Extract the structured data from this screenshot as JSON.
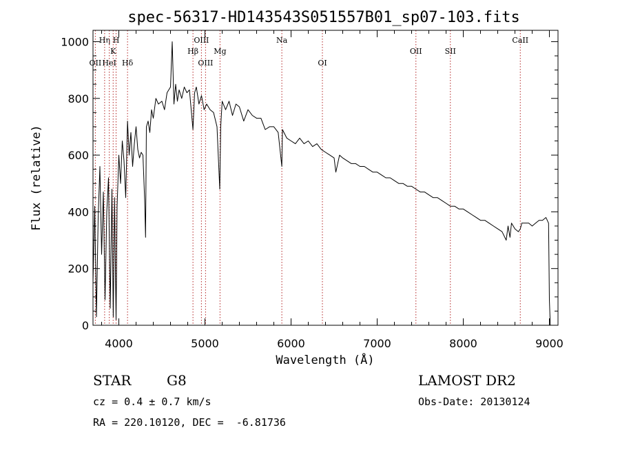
{
  "chart_data": {
    "type": "line",
    "title": "spec-56317-HD143543S051557B01_sp07-103.fits",
    "xlabel": "Wavelength (Å)",
    "ylabel": "Flux (relative)",
    "xlim": [
      3700,
      9100
    ],
    "ylim": [
      0,
      1040
    ],
    "xticks": [
      4000,
      5000,
      6000,
      7000,
      8000,
      9000
    ],
    "yticks": [
      0,
      200,
      400,
      600,
      800,
      1000
    ],
    "grid": false,
    "line_color": "#000000",
    "marker_color": "#b22222",
    "series": [
      {
        "x": [
          3700,
          3720,
          3740,
          3760,
          3780,
          3800,
          3820,
          3840,
          3860,
          3880,
          3900,
          3920,
          3935,
          3950,
          3968,
          3980,
          4000,
          4020,
          4040,
          4060,
          4080,
          4101,
          4120,
          4140,
          4160,
          4180,
          4200,
          4220,
          4240,
          4260,
          4280,
          4300,
          4310,
          4320,
          4340,
          4360,
          4380,
          4400,
          4430,
          4460,
          4500,
          4530,
          4560,
          4600,
          4620,
          4640,
          4660,
          4680,
          4700,
          4730,
          4760,
          4790,
          4820,
          4861,
          4880,
          4900,
          4930,
          4960,
          4990,
          5020,
          5060,
          5100,
          5140,
          5172,
          5183,
          5200,
          5240,
          5280,
          5320,
          5360,
          5400,
          5450,
          5500,
          5550,
          5600,
          5650,
          5700,
          5750,
          5800,
          5850,
          5893,
          5900,
          5950,
          6000,
          6050,
          6100,
          6150,
          6200,
          6250,
          6300,
          6350,
          6400,
          6450,
          6500,
          6520,
          6563,
          6600,
          6650,
          6700,
          6750,
          6800,
          6850,
          6900,
          6950,
          7000,
          7050,
          7100,
          7150,
          7200,
          7250,
          7300,
          7350,
          7400,
          7450,
          7500,
          7550,
          7600,
          7650,
          7700,
          7750,
          7800,
          7850,
          7900,
          7950,
          8000,
          8050,
          8100,
          8150,
          8200,
          8250,
          8300,
          8350,
          8400,
          8450,
          8498,
          8520,
          8542,
          8560,
          8600,
          8640,
          8662,
          8680,
          8720,
          8760,
          8800,
          8840,
          8880,
          8920,
          8960,
          8990,
          9000,
          9010
        ],
        "y": [
          150,
          420,
          30,
          380,
          560,
          250,
          470,
          90,
          400,
          520,
          60,
          480,
          30,
          450,
          20,
          420,
          600,
          500,
          650,
          580,
          450,
          720,
          600,
          680,
          560,
          640,
          700,
          620,
          590,
          610,
          600,
          440,
          310,
          700,
          720,
          680,
          760,
          730,
          800,
          780,
          790,
          760,
          820,
          840,
          1000,
          780,
          850,
          790,
          830,
          800,
          840,
          820,
          830,
          690,
          820,
          840,
          780,
          810,
          760,
          780,
          760,
          750,
          700,
          480,
          700,
          790,
          760,
          790,
          740,
          780,
          770,
          720,
          760,
          740,
          730,
          730,
          690,
          700,
          700,
          680,
          560,
          690,
          660,
          650,
          640,
          660,
          640,
          650,
          630,
          640,
          620,
          610,
          600,
          590,
          540,
          600,
          590,
          580,
          570,
          570,
          560,
          560,
          550,
          540,
          540,
          530,
          520,
          520,
          510,
          500,
          500,
          490,
          490,
          480,
          470,
          470,
          460,
          450,
          450,
          440,
          430,
          420,
          420,
          410,
          410,
          400,
          390,
          380,
          370,
          370,
          360,
          350,
          340,
          330,
          300,
          350,
          310,
          360,
          340,
          330,
          340,
          360,
          360,
          360,
          350,
          360,
          370,
          370,
          380,
          360,
          90,
          0
        ]
      }
    ],
    "line_markers": [
      {
        "label": "OII",
        "x": 3727,
        "row": 3
      },
      {
        "label": "Hη",
        "x": 3835,
        "row": 1
      },
      {
        "label": "HeI",
        "x": 3889,
        "row": 3
      },
      {
        "label": "K",
        "x": 3934,
        "row": 2
      },
      {
        "label": "H",
        "x": 3968,
        "row": 1
      },
      {
        "label": "Hδ",
        "x": 4101,
        "row": 3
      },
      {
        "label": "Hβ",
        "x": 4861,
        "row": 2
      },
      {
        "label": "OIII",
        "x": 4959,
        "row": 1
      },
      {
        "label": "OIII",
        "x": 5007,
        "row": 3
      },
      {
        "label": "Mg",
        "x": 5175,
        "row": 2
      },
      {
        "label": "Na",
        "x": 5893,
        "row": 1
      },
      {
        "label": "OI",
        "x": 6364,
        "row": 3
      },
      {
        "label": "OII",
        "x": 7450,
        "row": 2
      },
      {
        "label": "SII",
        "x": 7850,
        "row": 2
      },
      {
        "label": "CaII",
        "x": 8662,
        "row": 1
      }
    ]
  },
  "info": {
    "class": "STAR",
    "subclass": "G8",
    "redshift": "cz = 0.4 ± 0.7 km/s",
    "coords": "RA = 220.10120, DEC =  -6.81736",
    "survey": "LAMOST DR2",
    "obs_date": "Obs-Date: 20130124"
  }
}
